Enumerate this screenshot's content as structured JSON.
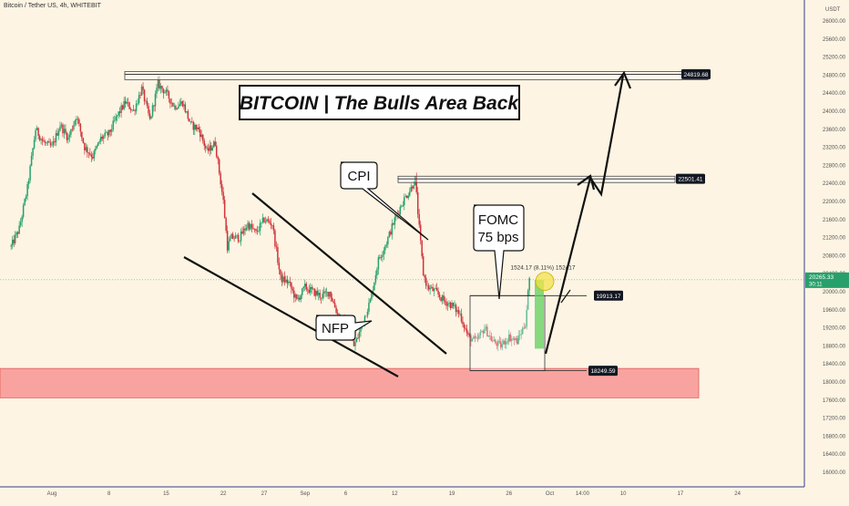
{
  "header": {
    "symbol": "Bitcoin / Tether US, 4h, WHITEBIT"
  },
  "chart_data": {
    "type": "candlestick",
    "title": "BITCOIN | The Bulls Area Back",
    "ylabel": "USDT",
    "ylim": [
      15840,
      26200
    ],
    "yticks": [
      26000,
      25600,
      25200,
      24800,
      24400,
      24000,
      23600,
      23200,
      22800,
      22400,
      22000,
      21600,
      21200,
      20800,
      20400,
      20000,
      19600,
      19200,
      18800,
      18400,
      18000,
      17600,
      17200,
      16800,
      16400,
      16000
    ],
    "xticks": [
      {
        "label": "Aug",
        "v": 0
      },
      {
        "label": "8",
        "v": 7
      },
      {
        "label": "15",
        "v": 14
      },
      {
        "label": "22",
        "v": 21
      },
      {
        "label": "27",
        "v": 26
      },
      {
        "label": "Sep",
        "v": 31
      },
      {
        "label": "6",
        "v": 36
      },
      {
        "label": "12",
        "v": 42
      },
      {
        "label": "19",
        "v": 49
      },
      {
        "label": "26",
        "v": 56
      },
      {
        "label": "Oct",
        "v": 61
      },
      {
        "label": "14:00",
        "v": 65
      },
      {
        "label": "10",
        "v": 70
      },
      {
        "label": "17",
        "v": 77
      },
      {
        "label": "24",
        "v": 84
      }
    ],
    "path": [
      [
        -5,
        21000
      ],
      [
        -4,
        21400
      ],
      [
        -3,
        22300
      ],
      [
        -2,
        23600
      ],
      [
        -1,
        23300
      ],
      [
        0,
        23200
      ],
      [
        1,
        23700
      ],
      [
        2,
        23400
      ],
      [
        3,
        23900
      ],
      [
        4,
        23200
      ],
      [
        5,
        23000
      ],
      [
        6,
        23400
      ],
      [
        7,
        23500
      ],
      [
        8,
        23900
      ],
      [
        9,
        24200
      ],
      [
        10,
        24000
      ],
      [
        11,
        24500
      ],
      [
        12,
        23800
      ],
      [
        13,
        24600
      ],
      [
        14,
        24400
      ],
      [
        15,
        24100
      ],
      [
        16,
        24200
      ],
      [
        17,
        23700
      ],
      [
        18,
        23600
      ],
      [
        19,
        23100
      ],
      [
        20,
        23300
      ],
      [
        21,
        22000
      ],
      [
        21.5,
        21000
      ],
      [
        22,
        21200
      ],
      [
        23,
        21200
      ],
      [
        24,
        21500
      ],
      [
        25,
        21300
      ],
      [
        26,
        21600
      ],
      [
        27,
        21500
      ],
      [
        28,
        20300
      ],
      [
        29,
        20200
      ],
      [
        30,
        19800
      ],
      [
        31,
        20100
      ],
      [
        32,
        20000
      ],
      [
        33,
        19900
      ],
      [
        34,
        20000
      ],
      [
        35,
        19500
      ],
      [
        36,
        19300
      ],
      [
        37,
        18800
      ],
      [
        37.5,
        19000
      ],
      [
        38,
        19300
      ],
      [
        39,
        19800
      ],
      [
        40,
        20700
      ],
      [
        41,
        21100
      ],
      [
        42,
        21600
      ],
      [
        43,
        22000
      ],
      [
        44,
        22300
      ],
      [
        44.5,
        22500
      ],
      [
        45,
        21400
      ],
      [
        45.5,
        20400
      ],
      [
        46,
        20100
      ],
      [
        47,
        20000
      ],
      [
        48,
        19800
      ],
      [
        49,
        19700
      ],
      [
        50,
        19500
      ],
      [
        51,
        19000
      ],
      [
        52,
        18900
      ],
      [
        53,
        19200
      ],
      [
        54,
        18900
      ],
      [
        55,
        18800
      ],
      [
        56,
        19000
      ],
      [
        57,
        18900
      ],
      [
        58,
        19300
      ],
      [
        58.5,
        20300
      ]
    ],
    "levels": [
      {
        "label": "24819.68",
        "value": 24819.68
      },
      {
        "label": "22501.41",
        "value": 22501.41
      },
      {
        "label": "19913.17",
        "value": 19913.17
      },
      {
        "label": "18249.59",
        "value": 18249.59
      }
    ],
    "current_price": "20265.33",
    "countdown": "30:11",
    "measure_label": "1524.17 (8.11%) 152417",
    "annotations": [
      {
        "id": "cpi",
        "text": "CPI"
      },
      {
        "id": "fomc",
        "lines": [
          "FOMC",
          "75 bps"
        ]
      },
      {
        "id": "nfp",
        "text": "NFP"
      }
    ],
    "support_zone": [
      17650,
      18300
    ],
    "colors": {
      "up": "#27a06b",
      "down": "#d1333b",
      "bg": "#fdf4e3",
      "zone": "#f7888a"
    }
  }
}
